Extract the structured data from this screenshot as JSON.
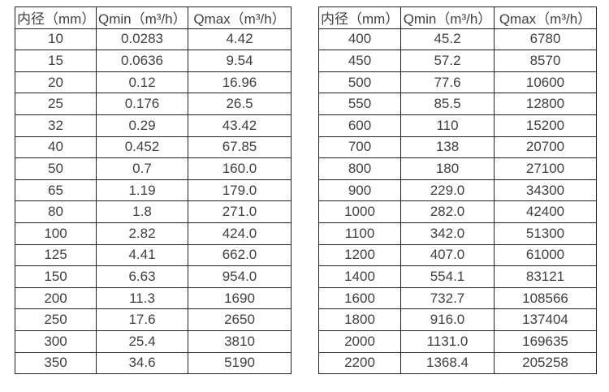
{
  "colors": {
    "border": "#212121",
    "text": "#3f3f3f",
    "background": "#ffffff"
  },
  "tables": [
    {
      "name": "flow-rate-table-small-diameters",
      "headers": [
        "内径（mm）",
        "Qmin（m³/h）",
        "Qmax（m³/h）"
      ],
      "rows": [
        [
          "10",
          "0.0283",
          "4.42"
        ],
        [
          "15",
          "0.0636",
          "9.54"
        ],
        [
          "20",
          "0.12",
          "16.96"
        ],
        [
          "25",
          "0.176",
          "26.5"
        ],
        [
          "32",
          "0.29",
          "43.42"
        ],
        [
          "40",
          "0.452",
          "67.85"
        ],
        [
          "50",
          "0.7",
          "160.0"
        ],
        [
          "65",
          "1.19",
          "179.0"
        ],
        [
          "80",
          "1.8",
          "271.0"
        ],
        [
          "100",
          "2.82",
          "424.0"
        ],
        [
          "125",
          "4.41",
          "662.0"
        ],
        [
          "150",
          "6.63",
          "954.0"
        ],
        [
          "200",
          "11.3",
          "1690"
        ],
        [
          "250",
          "17.6",
          "2650"
        ],
        [
          "300",
          "25.4",
          "3810"
        ],
        [
          "350",
          "34.6",
          "5190"
        ]
      ]
    },
    {
      "name": "flow-rate-table-large-diameters",
      "headers": [
        "内径（mm）",
        "Qmin（m³/h）",
        "Qmax（m³/h）"
      ],
      "rows": [
        [
          "400",
          "45.2",
          "6780"
        ],
        [
          "450",
          "57.2",
          "8570"
        ],
        [
          "500",
          "77.6",
          "10600"
        ],
        [
          "550",
          "85.5",
          "12800"
        ],
        [
          "600",
          "110",
          "15200"
        ],
        [
          "700",
          "138",
          "20700"
        ],
        [
          "800",
          "180",
          "27100"
        ],
        [
          "900",
          "229.0",
          "34300"
        ],
        [
          "1000",
          "282.0",
          "42400"
        ],
        [
          "1100",
          "342.0",
          "51300"
        ],
        [
          "1200",
          "407.0",
          "61000"
        ],
        [
          "1400",
          "554.1",
          "83121"
        ],
        [
          "1600",
          "732.7",
          "108566"
        ],
        [
          "1800",
          "916.0",
          "137404"
        ],
        [
          "2000",
          "1131.0",
          "169635"
        ],
        [
          "2200",
          "1368.4",
          "205258"
        ]
      ]
    }
  ]
}
